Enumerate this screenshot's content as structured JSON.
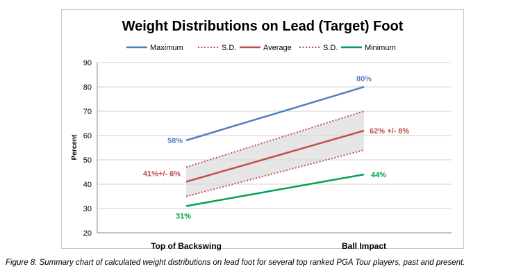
{
  "caption": "Figure 8. Summary chart of calculated weight distributions on lead foot for several top ranked PGA Tour players, past and present.",
  "chart_data": {
    "type": "line",
    "title": "Weight Distributions on Lead (Target) Foot",
    "ylabel": "Percent",
    "xlabel": "",
    "categories": [
      "Top of Backswing",
      "Ball Impact"
    ],
    "ylim": [
      20,
      90
    ],
    "yticks": [
      "20",
      "30",
      "40",
      "50",
      "60",
      "70",
      "80",
      "90"
    ],
    "grid": true,
    "legend_position": "top",
    "series": [
      {
        "name": "Maximum",
        "values": [
          58,
          80
        ],
        "color": "#4f81bd",
        "style": "solid",
        "labels": [
          "58%",
          "80%"
        ]
      },
      {
        "name": "S.D.",
        "values": [
          47,
          70
        ],
        "color": "#c0504d",
        "style": "dotted",
        "labels": [
          "",
          ""
        ]
      },
      {
        "name": "Average",
        "values": [
          41,
          62
        ],
        "color": "#c0504d",
        "style": "solid",
        "labels": [
          "41%+/- 6%",
          "62% +/- 8%"
        ]
      },
      {
        "name": "S.D.",
        "values": [
          35,
          54
        ],
        "color": "#c0504d",
        "style": "dotted",
        "labels": [
          "",
          ""
        ]
      },
      {
        "name": "Minimum",
        "values": [
          31,
          44
        ],
        "color": "#00a050",
        "style": "solid",
        "labels": [
          "31%",
          "44%"
        ]
      }
    ],
    "band_color": "#d9d9d9"
  }
}
